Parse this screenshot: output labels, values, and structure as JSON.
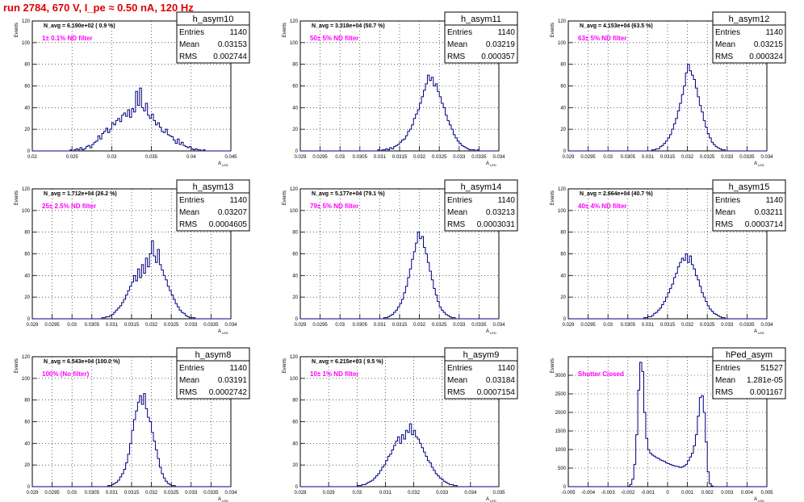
{
  "canvas_title": "run 2784,   670 V, I_pe ≈ 0.50 nA, 120 Hz",
  "colors": {
    "title": "#e00000",
    "filter_label": "#ff00ff",
    "histogram": "#000080",
    "grid": "#000000",
    "background": "#ffffff"
  },
  "y_axis_label": "Events",
  "x_axis_label": "A",
  "x_axis_label_sub": "LED",
  "chart_data": [
    {
      "type": "histogram",
      "name": "h_asym10",
      "stats": {
        "entries_label": "Entries",
        "entries": "1140",
        "mean_label": "Mean",
        "mean": "0.03153",
        "rms_label": "RMS",
        "rms": "0.002744"
      },
      "annotation": "N_avg = 6.190e+02 ( 0.9 %)",
      "filter": "1± 0.1% ND filter",
      "xlim": [
        0.02,
        0.045
      ],
      "ylim": [
        0,
        120
      ],
      "xticks": [
        "0.02",
        "0.025",
        "0.03",
        "0.035",
        "0.04",
        "0.045"
      ],
      "xtick_values": [
        0.02,
        0.025,
        0.03,
        0.035,
        0.04,
        0.045
      ],
      "yticks": [
        0,
        20,
        40,
        60,
        80,
        100,
        120
      ],
      "bins": 100,
      "counts": [
        0,
        0,
        0,
        0,
        0,
        0,
        0,
        0,
        0,
        0,
        0,
        0,
        0,
        0,
        0,
        0,
        0,
        0,
        0,
        1,
        0,
        1,
        2,
        1,
        3,
        1,
        2,
        4,
        5,
        3,
        6,
        8,
        9,
        14,
        11,
        16,
        18,
        21,
        17,
        20,
        26,
        24,
        28,
        30,
        27,
        33,
        35,
        32,
        38,
        31,
        39,
        36,
        55,
        42,
        58,
        40,
        37,
        44,
        33,
        30,
        34,
        28,
        24,
        26,
        22,
        18,
        17,
        20,
        15,
        14,
        13,
        10,
        7,
        11,
        6,
        8,
        5,
        4,
        3,
        4,
        2,
        1,
        2,
        1,
        1,
        0,
        1,
        0,
        0,
        0,
        0,
        0,
        0,
        0,
        0,
        0,
        0,
        0,
        0,
        0
      ]
    },
    {
      "type": "histogram",
      "name": "h_asym11",
      "stats": {
        "entries_label": "Entries",
        "entries": "1140",
        "mean_label": "Mean",
        "mean": "0.03219",
        "rms_label": "RMS",
        "rms": "0.000357"
      },
      "annotation": "N_avg = 3.318e+04 (50.7 %)",
      "filter": "50± 5% ND filter",
      "xlim": [
        0.029,
        0.034
      ],
      "ylim": [
        0,
        120
      ],
      "xticks": [
        "0.029",
        "0.0295",
        "0.03",
        "0.0305",
        "0.031",
        "0.0315",
        "0.032",
        "0.0325",
        "0.033",
        "0.0335",
        "0.034"
      ],
      "xtick_values": [
        0.029,
        0.0295,
        0.03,
        0.0305,
        0.031,
        0.0315,
        0.032,
        0.0325,
        0.033,
        0.0335,
        0.034
      ],
      "yticks": [
        0,
        20,
        40,
        60,
        80,
        100,
        120
      ],
      "bins": 100,
      "counts": [
        0,
        0,
        0,
        0,
        0,
        0,
        0,
        0,
        0,
        0,
        0,
        0,
        0,
        0,
        0,
        0,
        0,
        0,
        0,
        0,
        0,
        0,
        0,
        0,
        0,
        0,
        0,
        0,
        0,
        0,
        0,
        0,
        0,
        0,
        0,
        0,
        0,
        0,
        0,
        1,
        0,
        1,
        1,
        2,
        1,
        3,
        2,
        4,
        5,
        6,
        8,
        10,
        11,
        14,
        18,
        20,
        24,
        30,
        34,
        38,
        44,
        50,
        56,
        62,
        70,
        65,
        68,
        60,
        62,
        55,
        50,
        44,
        40,
        33,
        28,
        24,
        20,
        15,
        12,
        9,
        7,
        5,
        4,
        3,
        2,
        1,
        1,
        1,
        0,
        1,
        0,
        0,
        0,
        0,
        0,
        0,
        0,
        0,
        0,
        0
      ]
    },
    {
      "type": "histogram",
      "name": "h_asym12",
      "stats": {
        "entries_label": "Entries",
        "entries": "1140",
        "mean_label": "Mean",
        "mean": "0.03215",
        "rms_label": "RMS",
        "rms": "0.000324"
      },
      "annotation": "N_avg = 4.153e+04 (63.5 %)",
      "filter": "63± 5% ND filter",
      "xlim": [
        0.029,
        0.034
      ],
      "ylim": [
        0,
        120
      ],
      "xticks": [
        "0.029",
        "0.0295",
        "0.03",
        "0.0305",
        "0.031",
        "0.0315",
        "0.032",
        "0.0325",
        "0.033",
        "0.0335",
        "0.034"
      ],
      "xtick_values": [
        0.029,
        0.0295,
        0.03,
        0.0305,
        0.031,
        0.0315,
        0.032,
        0.0325,
        0.033,
        0.0335,
        0.034
      ],
      "yticks": [
        0,
        20,
        40,
        60,
        80,
        100,
        120
      ],
      "bins": 100,
      "counts": [
        0,
        0,
        0,
        0,
        0,
        0,
        0,
        0,
        0,
        0,
        0,
        0,
        0,
        0,
        0,
        0,
        0,
        0,
        0,
        0,
        0,
        0,
        0,
        0,
        0,
        0,
        0,
        0,
        0,
        0,
        0,
        0,
        0,
        0,
        0,
        0,
        0,
        0,
        0,
        0,
        0,
        0,
        1,
        1,
        2,
        2,
        4,
        5,
        7,
        9,
        12,
        15,
        20,
        25,
        30,
        37,
        44,
        52,
        60,
        72,
        80,
        74,
        70,
        66,
        58,
        50,
        42,
        36,
        28,
        22,
        16,
        12,
        8,
        6,
        4,
        3,
        2,
        1,
        1,
        0,
        0,
        0,
        0,
        0,
        0,
        0,
        0,
        0,
        0,
        0,
        0,
        0,
        0,
        0,
        0,
        0,
        0,
        0,
        0,
        0
      ]
    },
    {
      "type": "histogram",
      "name": "h_asym13",
      "stats": {
        "entries_label": "Entries",
        "entries": "1140",
        "mean_label": "Mean",
        "mean": "0.03207",
        "rms_label": "RMS",
        "rms": "0.0004605"
      },
      "annotation": "N_avg = 1.712e+04 (26.2 %)",
      "filter": "25± 2.5% ND filter",
      "xlim": [
        0.029,
        0.034
      ],
      "ylim": [
        0,
        120
      ],
      "xticks": [
        "0.029",
        "0.0295",
        "0.03",
        "0.0305",
        "0.031",
        "0.0315",
        "0.032",
        "0.0325",
        "0.033",
        "0.0335",
        "0.034"
      ],
      "xtick_values": [
        0.029,
        0.0295,
        0.03,
        0.0305,
        0.031,
        0.0315,
        0.032,
        0.0325,
        0.033,
        0.0335,
        0.034
      ],
      "yticks": [
        0,
        20,
        40,
        60,
        80,
        100,
        120
      ],
      "bins": 100,
      "counts": [
        0,
        0,
        0,
        0,
        0,
        0,
        0,
        0,
        0,
        0,
        0,
        0,
        0,
        0,
        0,
        0,
        0,
        0,
        0,
        0,
        0,
        0,
        0,
        0,
        0,
        0,
        0,
        0,
        0,
        0,
        0,
        0,
        0,
        0,
        0,
        1,
        1,
        2,
        2,
        3,
        4,
        6,
        8,
        10,
        12,
        15,
        18,
        22,
        26,
        30,
        34,
        40,
        35,
        46,
        38,
        50,
        42,
        56,
        48,
        60,
        72,
        58,
        52,
        64,
        50,
        45,
        40,
        36,
        30,
        26,
        22,
        18,
        14,
        11,
        8,
        6,
        5,
        3,
        2,
        1,
        1,
        1,
        0,
        0,
        0,
        0,
        0,
        0,
        0,
        0,
        0,
        0,
        0,
        0,
        0,
        0,
        0,
        0,
        0,
        0
      ]
    },
    {
      "type": "histogram",
      "name": "h_asym14",
      "stats": {
        "entries_label": "Entries",
        "entries": "1140",
        "mean_label": "Mean",
        "mean": "0.03213",
        "rms_label": "RMS",
        "rms": "0.0003031"
      },
      "annotation": "N_avg = 5.177e+04 (79.1 %)",
      "filter": "79± 5% ND filter",
      "xlim": [
        0.029,
        0.034
      ],
      "ylim": [
        0,
        120
      ],
      "xticks": [
        "0.029",
        "0.0295",
        "0.03",
        "0.0305",
        "0.031",
        "0.0315",
        "0.032",
        "0.0325",
        "0.033",
        "0.0335",
        "0.034"
      ],
      "xtick_values": [
        0.029,
        0.0295,
        0.03,
        0.0305,
        0.031,
        0.0315,
        0.032,
        0.0325,
        0.033,
        0.0335,
        0.034
      ],
      "yticks": [
        0,
        20,
        40,
        60,
        80,
        100,
        120
      ],
      "bins": 100,
      "counts": [
        0,
        0,
        0,
        0,
        0,
        0,
        0,
        0,
        0,
        0,
        0,
        0,
        0,
        0,
        0,
        0,
        0,
        0,
        0,
        0,
        0,
        0,
        0,
        0,
        0,
        0,
        0,
        0,
        0,
        0,
        0,
        0,
        0,
        0,
        0,
        0,
        0,
        0,
        0,
        0,
        0,
        0,
        1,
        1,
        2,
        3,
        4,
        6,
        8,
        11,
        14,
        18,
        24,
        30,
        38,
        46,
        55,
        62,
        70,
        80,
        74,
        76,
        66,
        60,
        52,
        44,
        36,
        28,
        22,
        16,
        11,
        8,
        6,
        4,
        3,
        2,
        1,
        1,
        0,
        0,
        0,
        0,
        0,
        0,
        0,
        0,
        0,
        0,
        0,
        0,
        0,
        0,
        0,
        0,
        0,
        0,
        0,
        0,
        0,
        0
      ]
    },
    {
      "type": "histogram",
      "name": "h_asym15",
      "stats": {
        "entries_label": "Entries",
        "entries": "1140",
        "mean_label": "Mean",
        "mean": "0.03211",
        "rms_label": "RMS",
        "rms": "0.0003714"
      },
      "annotation": "N_avg = 2.664e+04 (40.7 %)",
      "filter": "40± 4% ND filter",
      "xlim": [
        0.029,
        0.034
      ],
      "ylim": [
        0,
        120
      ],
      "xticks": [
        "0.029",
        "0.0295",
        "0.03",
        "0.0305",
        "0.031",
        "0.0315",
        "0.032",
        "0.0325",
        "0.033",
        "0.0335",
        "0.034"
      ],
      "xtick_values": [
        0.029,
        0.0295,
        0.03,
        0.0305,
        0.031,
        0.0315,
        0.032,
        0.0325,
        0.033,
        0.0335,
        0.034
      ],
      "yticks": [
        0,
        20,
        40,
        60,
        80,
        100,
        120
      ],
      "bins": 100,
      "counts": [
        0,
        0,
        0,
        0,
        0,
        0,
        0,
        0,
        0,
        0,
        0,
        0,
        0,
        0,
        0,
        0,
        0,
        0,
        0,
        0,
        0,
        0,
        0,
        0,
        0,
        0,
        0,
        0,
        0,
        0,
        0,
        0,
        0,
        0,
        0,
        0,
        0,
        0,
        1,
        1,
        2,
        2,
        3,
        5,
        6,
        8,
        10,
        13,
        16,
        20,
        24,
        28,
        32,
        38,
        42,
        48,
        52,
        56,
        54,
        60,
        52,
        58,
        50,
        46,
        40,
        36,
        30,
        24,
        20,
        16,
        12,
        9,
        7,
        5,
        4,
        3,
        2,
        1,
        1,
        0,
        0,
        0,
        0,
        0,
        0,
        0,
        0,
        0,
        0,
        0,
        0,
        0,
        0,
        0,
        0,
        0,
        0,
        0,
        0,
        0
      ]
    },
    {
      "type": "histogram",
      "name": "h_asym8",
      "stats": {
        "entries_label": "Entries",
        "entries": "1140",
        "mean_label": "Mean",
        "mean": "0.03191",
        "rms_label": "RMS",
        "rms": "0.0002742"
      },
      "annotation": "N_avg = 6.543e+04 (100.0 %)",
      "filter": "100% (No filter)",
      "xlim": [
        0.029,
        0.034
      ],
      "ylim": [
        0,
        120
      ],
      "xticks": [
        "0.029",
        "0.0295",
        "0.03",
        "0.0305",
        "0.031",
        "0.0315",
        "0.032",
        "0.0325",
        "0.033",
        "0.0335",
        "0.034"
      ],
      "xtick_values": [
        0.029,
        0.0295,
        0.03,
        0.0305,
        0.031,
        0.0315,
        0.032,
        0.0325,
        0.033,
        0.0335,
        0.034
      ],
      "yticks": [
        0,
        20,
        40,
        60,
        80,
        100,
        120
      ],
      "bins": 100,
      "counts": [
        0,
        0,
        0,
        0,
        0,
        0,
        0,
        0,
        0,
        0,
        0,
        0,
        0,
        0,
        0,
        0,
        0,
        0,
        0,
        0,
        0,
        0,
        0,
        0,
        0,
        0,
        0,
        0,
        0,
        0,
        0,
        0,
        0,
        0,
        0,
        0,
        0,
        0,
        1,
        1,
        2,
        3,
        4,
        6,
        9,
        12,
        16,
        22,
        30,
        40,
        52,
        62,
        70,
        78,
        84,
        76,
        86,
        72,
        64,
        60,
        50,
        42,
        34,
        26,
        18,
        12,
        8,
        5,
        3,
        2,
        1,
        1,
        0,
        0,
        0,
        0,
        0,
        0,
        0,
        0,
        0,
        0,
        0,
        0,
        0,
        0,
        0,
        0,
        0,
        0,
        0,
        0,
        0,
        0,
        0,
        0,
        0,
        0,
        0,
        0
      ]
    },
    {
      "type": "histogram",
      "name": "h_asym9",
      "stats": {
        "entries_label": "Entries",
        "entries": "1140",
        "mean_label": "Mean",
        "mean": "0.03184",
        "rms_label": "RMS",
        "rms": "0.0007154"
      },
      "annotation": "N_avg = 6.215e+03 ( 9.5 %)",
      "filter": "10± 1% ND filter",
      "xlim": [
        0.028,
        0.035
      ],
      "ylim": [
        0,
        120
      ],
      "xticks": [
        "0.028",
        "0.029",
        "0.03",
        "0.031",
        "0.032",
        "0.033",
        "0.034",
        "0.035"
      ],
      "xtick_values": [
        0.028,
        0.029,
        0.03,
        0.031,
        0.032,
        0.033,
        0.034,
        0.035
      ],
      "yticks": [
        0,
        20,
        40,
        60,
        80,
        100,
        120
      ],
      "bins": 100,
      "counts": [
        0,
        0,
        0,
        0,
        0,
        0,
        0,
        0,
        0,
        0,
        0,
        0,
        0,
        0,
        0,
        0,
        0,
        0,
        0,
        0,
        0,
        0,
        0,
        0,
        0,
        0,
        0,
        0,
        0,
        1,
        1,
        2,
        2,
        3,
        4,
        5,
        6,
        8,
        10,
        12,
        15,
        18,
        20,
        24,
        28,
        30,
        34,
        38,
        42,
        46,
        40,
        48,
        44,
        52,
        50,
        58,
        48,
        52,
        46,
        44,
        40,
        36,
        32,
        28,
        24,
        22,
        18,
        15,
        12,
        10,
        8,
        7,
        5,
        4,
        3,
        2,
        2,
        1,
        1,
        0,
        0,
        0,
        0,
        0,
        0,
        0,
        0,
        0,
        0,
        0,
        0,
        0,
        0,
        0,
        0,
        0,
        0,
        0,
        0,
        0
      ]
    },
    {
      "type": "histogram",
      "name": "hPed_asym",
      "stats": {
        "entries_label": "Entries",
        "entries": "51527",
        "mean_label": "Mean",
        "mean": "1.281e-05",
        "rms_label": "RMS",
        "rms": "0.001167"
      },
      "annotation": "",
      "filter": "Shutter Closed",
      "xlim": [
        -0.005,
        0.005
      ],
      "ylim": [
        0,
        3500
      ],
      "xticks": [
        "-0.005",
        "-0.004",
        "-0.003",
        "-0.002",
        "-0.001",
        "0",
        "0.001",
        "0.002",
        "0.003",
        "0.004",
        "0.005"
      ],
      "xtick_values": [
        -0.005,
        -0.004,
        -0.003,
        -0.002,
        -0.001,
        0,
        0.001,
        0.002,
        0.003,
        0.004,
        0.005
      ],
      "yticks": [
        0,
        500,
        1000,
        1500,
        2000,
        2500,
        3000
      ],
      "bins": 100,
      "counts": [
        0,
        0,
        0,
        0,
        0,
        0,
        0,
        0,
        0,
        0,
        0,
        0,
        0,
        0,
        0,
        0,
        0,
        0,
        0,
        0,
        0,
        0,
        0,
        0,
        0,
        0,
        0,
        0,
        0,
        0,
        10,
        60,
        200,
        600,
        1400,
        2600,
        3350,
        3100,
        2000,
        1300,
        1000,
        900,
        850,
        820,
        780,
        760,
        720,
        700,
        680,
        640,
        620,
        600,
        580,
        560,
        550,
        540,
        520,
        530,
        560,
        600,
        700,
        800,
        900,
        1100,
        1400,
        1900,
        2400,
        2450,
        2000,
        1200,
        400,
        80,
        20,
        0,
        0,
        0,
        0,
        0,
        0,
        0,
        0,
        0,
        0,
        0,
        0,
        0,
        0,
        0,
        0,
        0,
        0,
        0,
        0,
        0,
        0,
        0,
        0,
        0,
        0,
        0
      ]
    }
  ]
}
